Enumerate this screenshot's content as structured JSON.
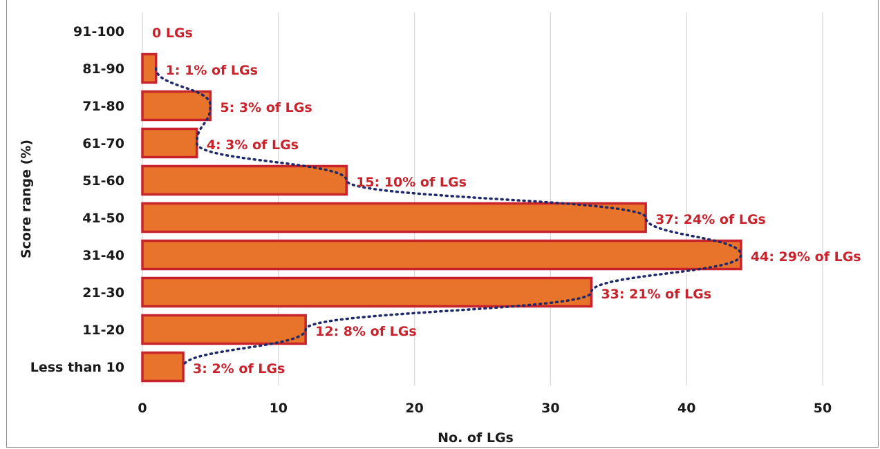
{
  "chart_data": {
    "type": "bar",
    "orientation": "horizontal",
    "categories": [
      "91-100",
      "81-90",
      "71-80",
      "61-70",
      "51-60",
      "41-50",
      "31-40",
      "21-30",
      "11-20",
      "Less than 10"
    ],
    "values": [
      0,
      1,
      5,
      4,
      15,
      37,
      44,
      33,
      12,
      3
    ],
    "data_labels": [
      "0 LGs",
      "1: 1% of LGs",
      "5: 3% of LGs",
      "4: 3% of LGs",
      "15: 10% of LGs",
      "37: 24% of LGs",
      "44: 29% of LGs",
      "33: 21% of LGs",
      "12: 8% of LGs",
      "3: 2% of LGs"
    ],
    "xlabel": "No. of LGs",
    "ylabel": "Score range (%)",
    "xlim": [
      0,
      50
    ],
    "xticks": [
      0,
      10,
      20,
      30,
      40,
      50
    ],
    "grid": "vertical",
    "trendline": "dotted",
    "colors": {
      "bar_fill": "#E8732A",
      "bar_border": "#C8232C",
      "label": "#C8232C",
      "trendline": "#1F2A6B",
      "grid": "#D9D9D9"
    }
  }
}
